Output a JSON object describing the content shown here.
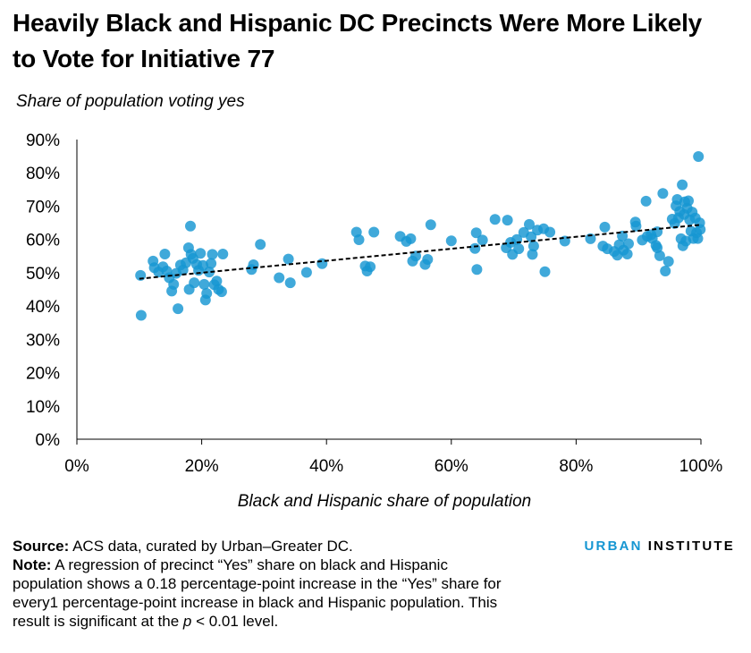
{
  "title": "Heavily Black and Hispanic DC Precincts Were More Likely to Vote for Initiative 77",
  "brand": {
    "part1": "URBAN",
    "part2": "INSTITUTE"
  },
  "source": {
    "label": "Source:",
    "text": " ACS data, curated by Urban–Greater DC."
  },
  "note": {
    "label": "Note:",
    "text1": " A regression of precinct “Yes” share on black and Hispanic population shows a 0.18 percentage-point increase in the “Yes” share for every1 percentage-point increase in black and Hispanic population. This result is significant at the ",
    "p": "p",
    "text2": " < 0.01 level."
  },
  "colors": {
    "points": "#1696d2",
    "axis": "#000000",
    "trend": "#000000"
  },
  "chart_data": {
    "type": "scatter",
    "xlabel": "Black and Hispanic share of population",
    "ylabel": "Share of population voting yes",
    "xlim": [
      0,
      100
    ],
    "ylim": [
      0,
      90
    ],
    "xticks": [
      "0%",
      "20%",
      "40%",
      "60%",
      "80%",
      "100%"
    ],
    "xtick_values": [
      0,
      20,
      40,
      60,
      80,
      100
    ],
    "yticks": [
      "0%",
      "10%",
      "20%",
      "30%",
      "40%",
      "50%",
      "60%",
      "70%",
      "80%",
      "90%"
    ],
    "ytick_values": [
      0,
      10,
      20,
      30,
      40,
      50,
      60,
      70,
      80,
      90
    ],
    "trendline": {
      "style": "dashed",
      "x": [
        10,
        100
      ],
      "y": [
        48.2,
        64.4
      ]
    },
    "grid": false,
    "points": [
      [
        10.2,
        49.2
      ],
      [
        10.3,
        37.2
      ],
      [
        12.2,
        53.5
      ],
      [
        12.4,
        51.5
      ],
      [
        13.1,
        50.2
      ],
      [
        13.8,
        51.8
      ],
      [
        14.1,
        55.6
      ],
      [
        14.4,
        50.5
      ],
      [
        14.8,
        48.5
      ],
      [
        15.2,
        44.5
      ],
      [
        15.5,
        46.5
      ],
      [
        15.9,
        49.8
      ],
      [
        16.2,
        39.2
      ],
      [
        16.6,
        52.3
      ],
      [
        17.0,
        50.8
      ],
      [
        17.5,
        53.0
      ],
      [
        17.9,
        57.5
      ],
      [
        18.0,
        45.0
      ],
      [
        18.2,
        64.0
      ],
      [
        18.3,
        55.5
      ],
      [
        18.6,
        54.3
      ],
      [
        18.8,
        47.0
      ],
      [
        19.2,
        52.5
      ],
      [
        19.5,
        50.7
      ],
      [
        19.8,
        55.8
      ],
      [
        20.2,
        52.2
      ],
      [
        20.4,
        46.5
      ],
      [
        20.6,
        41.8
      ],
      [
        20.8,
        43.8
      ],
      [
        21.2,
        50.2
      ],
      [
        21.5,
        52.8
      ],
      [
        21.7,
        55.5
      ],
      [
        22.0,
        46.4
      ],
      [
        22.4,
        47.5
      ],
      [
        22.7,
        45.0
      ],
      [
        23.2,
        44.3
      ],
      [
        23.4,
        55.6
      ],
      [
        28.0,
        51.0
      ],
      [
        28.3,
        52.4
      ],
      [
        29.4,
        58.5
      ],
      [
        32.4,
        48.5
      ],
      [
        33.9,
        54.1
      ],
      [
        34.2,
        47.0
      ],
      [
        36.8,
        50.1
      ],
      [
        39.3,
        52.7
      ],
      [
        44.8,
        62.2
      ],
      [
        45.2,
        59.9
      ],
      [
        46.2,
        52.0
      ],
      [
        46.5,
        50.5
      ],
      [
        47.0,
        51.8
      ],
      [
        47.6,
        62.2
      ],
      [
        51.8,
        60.9
      ],
      [
        52.8,
        59.4
      ],
      [
        53.5,
        60.2
      ],
      [
        53.8,
        53.5
      ],
      [
        54.3,
        55.0
      ],
      [
        55.8,
        52.5
      ],
      [
        56.2,
        54.0
      ],
      [
        56.7,
        64.4
      ],
      [
        60.0,
        59.6
      ],
      [
        63.8,
        57.3
      ],
      [
        64.1,
        51.0
      ],
      [
        64.0,
        62.0
      ],
      [
        65.0,
        59.8
      ],
      [
        67.0,
        66.0
      ],
      [
        69.0,
        65.8
      ],
      [
        68.8,
        57.5
      ],
      [
        69.5,
        59.1
      ],
      [
        69.8,
        55.5
      ],
      [
        70.5,
        60.0
      ],
      [
        70.8,
        57.2
      ],
      [
        71.6,
        62.1
      ],
      [
        72.5,
        64.5
      ],
      [
        72.8,
        60.8
      ],
      [
        73.0,
        55.5
      ],
      [
        73.2,
        58.0
      ],
      [
        73.8,
        62.8
      ],
      [
        74.8,
        63.2
      ],
      [
        75.0,
        50.3
      ],
      [
        75.8,
        62.2
      ],
      [
        78.2,
        59.5
      ],
      [
        82.3,
        60.2
      ],
      [
        84.3,
        58.0
      ],
      [
        84.6,
        63.7
      ],
      [
        85.0,
        57.2
      ],
      [
        86.1,
        56.4
      ],
      [
        86.6,
        55.3
      ],
      [
        86.9,
        58.4
      ],
      [
        87.6,
        56.8
      ],
      [
        87.4,
        61.0
      ],
      [
        88.2,
        55.6
      ],
      [
        88.4,
        58.7
      ],
      [
        89.5,
        65.2
      ],
      [
        89.6,
        64.0
      ],
      [
        90.6,
        59.8
      ],
      [
        91.2,
        71.5
      ],
      [
        91.4,
        60.9
      ],
      [
        92.0,
        61.4
      ],
      [
        92.2,
        60.3
      ],
      [
        92.8,
        58.2
      ],
      [
        93.0,
        62.3
      ],
      [
        93.4,
        55.1
      ],
      [
        93.0,
        57.5
      ],
      [
        93.9,
        73.8
      ],
      [
        94.3,
        50.5
      ],
      [
        94.8,
        53.4
      ],
      [
        95.4,
        66.1
      ],
      [
        95.8,
        64.8
      ],
      [
        96.0,
        70.1
      ],
      [
        96.2,
        72.0
      ],
      [
        96.4,
        66.5
      ],
      [
        96.6,
        68.4
      ],
      [
        96.8,
        60.2
      ],
      [
        97.0,
        76.4
      ],
      [
        97.1,
        58.1
      ],
      [
        97.3,
        67.5
      ],
      [
        97.4,
        71.3
      ],
      [
        97.6,
        59.5
      ],
      [
        97.8,
        69.4
      ],
      [
        98.0,
        71.6
      ],
      [
        98.2,
        65.9
      ],
      [
        98.4,
        62.5
      ],
      [
        98.6,
        68.2
      ],
      [
        98.8,
        60.3
      ],
      [
        99.1,
        66.4
      ],
      [
        99.3,
        62.0
      ],
      [
        99.5,
        60.3
      ],
      [
        99.6,
        84.9
      ],
      [
        99.8,
        65.0
      ],
      [
        99.9,
        63.0
      ]
    ]
  }
}
